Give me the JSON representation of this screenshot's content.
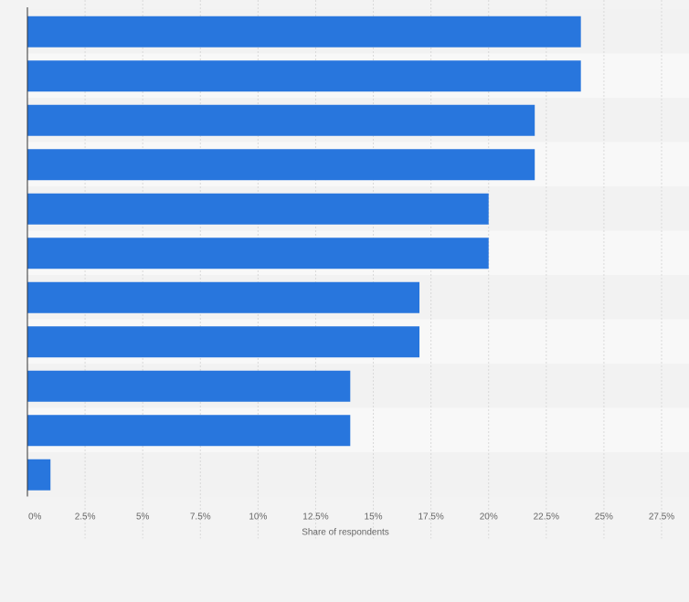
{
  "chart_data": {
    "type": "bar",
    "orientation": "horizontal",
    "xlabel": "Share of respondents",
    "xlim": [
      0,
      27.5
    ],
    "ticks": [
      0,
      2.5,
      5,
      7.5,
      10,
      12.5,
      15,
      17.5,
      20,
      22.5,
      25,
      27.5
    ],
    "tick_labels": [
      "0%",
      "2.5%",
      "5%",
      "7.5%",
      "10%",
      "12.5%",
      "15%",
      "17.5%",
      "20%",
      "22.5%",
      "25%",
      "27.5%"
    ],
    "values": [
      24,
      24,
      22,
      22,
      20,
      20,
      17,
      17,
      14,
      14,
      1
    ],
    "grid": true,
    "bar_color": "#2876dd",
    "band_colors": [
      "#f2f2f2",
      "#f8f8f8"
    ],
    "grid_color": "#d9d9d9"
  }
}
